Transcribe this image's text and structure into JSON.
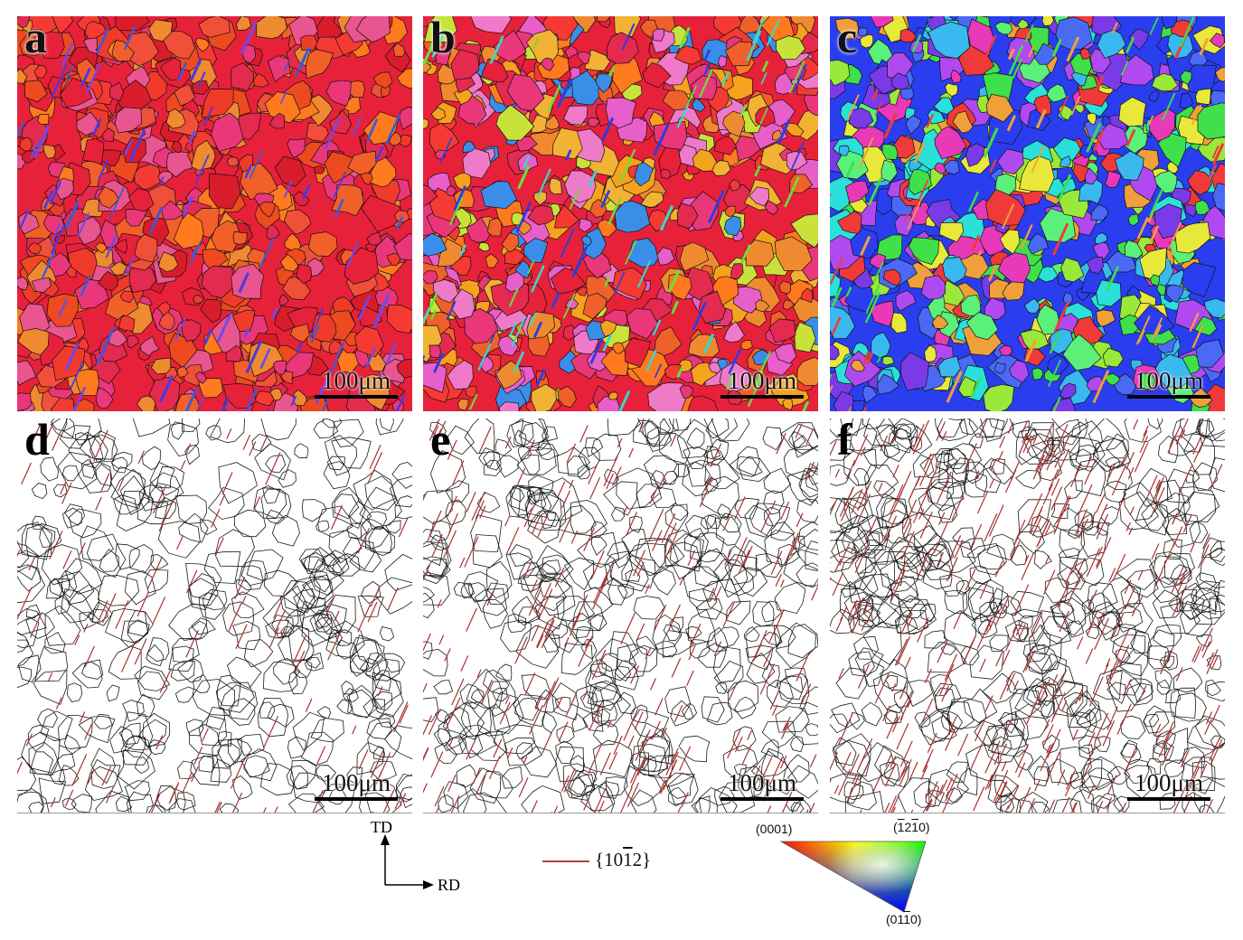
{
  "panels": [
    {
      "id": "a",
      "letter": "a",
      "scale_label": "100μm",
      "kind": "ipf-map",
      "palette": "red-orange dominant"
    },
    {
      "id": "b",
      "letter": "b",
      "scale_label": "100μm",
      "kind": "ipf-map",
      "palette": "red-orange mixed"
    },
    {
      "id": "c",
      "letter": "c",
      "scale_label": "100μm",
      "kind": "ipf-map",
      "palette": "blue-green mixed"
    },
    {
      "id": "d",
      "letter": "d",
      "scale_label": "100μm",
      "kind": "boundary-map"
    },
    {
      "id": "e",
      "letter": "e",
      "scale_label": "100μm",
      "kind": "boundary-map"
    },
    {
      "id": "f",
      "letter": "f",
      "scale_label": "100μm",
      "kind": "boundary-map"
    }
  ],
  "axes": {
    "vertical": "TD",
    "horizontal": "RD"
  },
  "legend": {
    "prefix": "{10",
    "overlined": "1",
    "suffix": "2}",
    "line_color": "#b04040"
  },
  "ipf_triangle": {
    "corner_basal": "(0001)",
    "corner_prism_a_open": "(",
    "corner_prism_a_bar1": "1",
    "corner_prism_a_mid": "2",
    "corner_prism_a_bar2": "1",
    "corner_prism_a_close": "0)",
    "corner_prism_m_open": "(01",
    "corner_prism_m_bar": "1",
    "corner_prism_m_close": "0)",
    "colors": {
      "basal": "#ff0000",
      "prism_a": "#00ff00",
      "prism_m": "#0000ff"
    }
  },
  "colors": {
    "boundary": "#1a1a1a",
    "twin": "#a83232"
  }
}
